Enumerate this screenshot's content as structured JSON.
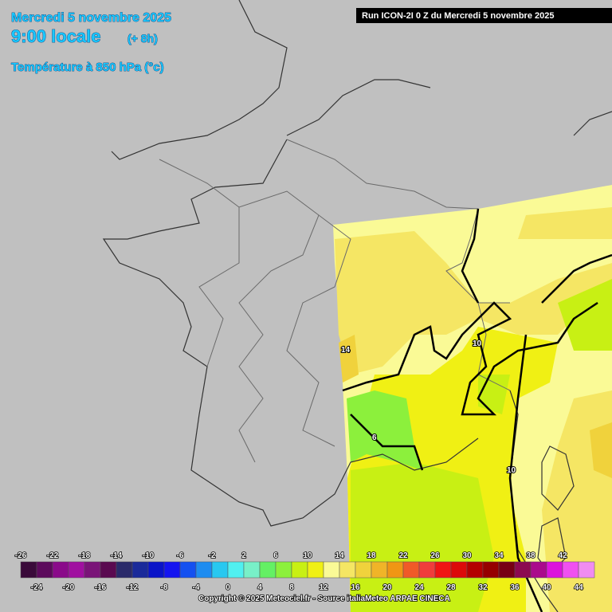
{
  "header": {
    "date": "Mercredi 5 novembre 2025",
    "time": "9:00 locale",
    "offset": "(+ 8h)",
    "variable": "Température à 850 hPa (°c)",
    "run": "Run ICON-2I 0 Z du Mercredi 5 novembre 2025"
  },
  "contour_labels": [
    "14",
    "10",
    "6",
    "10"
  ],
  "colorbar": {
    "ticks": [
      -26,
      -24,
      -22,
      -20,
      -18,
      -16,
      -14,
      -12,
      -10,
      -8,
      -6,
      -4,
      -2,
      0,
      2,
      4,
      6,
      8,
      10,
      12,
      14,
      16,
      18,
      20,
      22,
      24,
      26,
      28,
      30,
      32,
      34,
      36,
      38,
      40,
      42,
      44
    ],
    "colors": [
      "#3a0a3a",
      "#5c0a5c",
      "#8a0a8a",
      "#a010a0",
      "#7a1478",
      "#5a0a50",
      "#2a2a6a",
      "#1a2a9a",
      "#0a14c8",
      "#1414f0",
      "#1450f0",
      "#1e8cf0",
      "#28c8f0",
      "#50f0f0",
      "#78f0c8",
      "#64f064",
      "#8cf03c",
      "#c8f014",
      "#f0f014",
      "#fafa96",
      "#f5e664",
      "#f0d23c",
      "#f0b428",
      "#f09614",
      "#f05a28",
      "#f03c3c",
      "#f01414",
      "#dc0a0a",
      "#b40000",
      "#960000",
      "#780014",
      "#8c0a50",
      "#aa0a8c",
      "#dc14dc",
      "#f050f0",
      "#f08cf0"
    ]
  },
  "footer": {
    "copyright": "Copyright © 2025 Meteociel.fr - Source italiaMeteo ARPAE CINECA"
  }
}
